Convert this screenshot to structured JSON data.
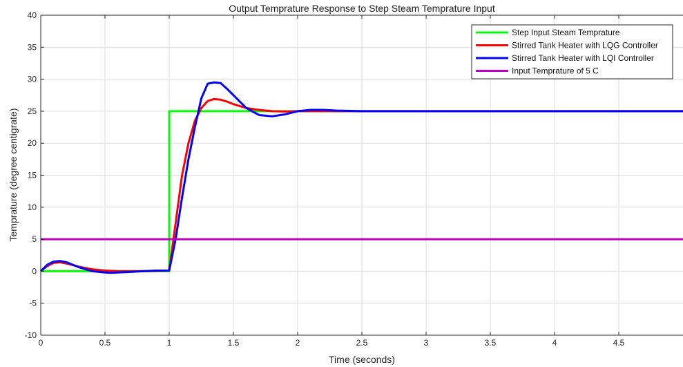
{
  "chart_data": {
    "type": "line",
    "title": "Output Temprature Response to Step Steam Temprature Input",
    "xlabel": "Time (seconds)",
    "ylabel": "Temprature (degree centigrate)",
    "xlim": [
      0,
      5
    ],
    "ylim": [
      -10,
      40
    ],
    "xticks": [
      0,
      0.5,
      1,
      1.5,
      2,
      2.5,
      3,
      3.5,
      4,
      4.5
    ],
    "xtick_labels": [
      "0",
      "0.5",
      "1",
      "1.5",
      "2",
      "2.5",
      "3",
      "3.5",
      "4",
      "4.5"
    ],
    "yticks": [
      -10,
      -5,
      0,
      5,
      10,
      15,
      20,
      25,
      30,
      35,
      40
    ],
    "ytick_labels": [
      "-10",
      "-5",
      "0",
      "5",
      "10",
      "15",
      "20",
      "25",
      "30",
      "35",
      "40"
    ],
    "grid": true,
    "legend_position": "top-right",
    "series": [
      {
        "name": "Step Input Steam Temprature",
        "color": "#00ff00",
        "x": [
          0,
          1,
          1,
          5
        ],
        "y": [
          0,
          0,
          25,
          25
        ]
      },
      {
        "name": "Stirred Tank Heater with LQG Controller",
        "color": "#ff0000",
        "x": [
          0,
          0.05,
          0.1,
          0.15,
          0.2,
          0.3,
          0.4,
          0.5,
          0.6,
          0.7,
          0.8,
          0.9,
          1.0,
          1.05,
          1.1,
          1.15,
          1.2,
          1.25,
          1.3,
          1.35,
          1.4,
          1.45,
          1.5,
          1.6,
          1.7,
          1.8,
          1.9,
          2.0,
          2.2,
          2.5,
          3,
          4,
          5
        ],
        "y": [
          0,
          0.8,
          1.3,
          1.4,
          1.2,
          0.7,
          0.3,
          0.1,
          0.0,
          0.0,
          0.0,
          0.05,
          0.1,
          7.5,
          15.0,
          20.0,
          23.5,
          25.5,
          26.6,
          26.9,
          26.8,
          26.5,
          26.1,
          25.5,
          25.2,
          25.0,
          24.95,
          25.0,
          25.0,
          25.0,
          25.0,
          25.0,
          25.0
        ]
      },
      {
        "name": "Stirred Tank Heater with LQI Controller",
        "color": "#0000ff",
        "x": [
          0,
          0.05,
          0.1,
          0.15,
          0.2,
          0.3,
          0.4,
          0.5,
          0.55,
          0.6,
          0.7,
          0.8,
          0.9,
          1.0,
          1.05,
          1.1,
          1.15,
          1.2,
          1.25,
          1.3,
          1.35,
          1.4,
          1.45,
          1.5,
          1.6,
          1.7,
          1.8,
          1.9,
          2.0,
          2.1,
          2.2,
          2.3,
          2.5,
          3,
          4,
          5
        ],
        "y": [
          0,
          1.0,
          1.5,
          1.6,
          1.4,
          0.6,
          0.0,
          -0.2,
          -0.25,
          -0.2,
          -0.1,
          0.0,
          0.1,
          0.1,
          5.0,
          11.5,
          17.5,
          22.5,
          27.0,
          29.3,
          29.5,
          29.4,
          28.5,
          27.5,
          25.5,
          24.4,
          24.2,
          24.5,
          25.0,
          25.2,
          25.2,
          25.1,
          25.0,
          25.0,
          25.0,
          25.0
        ]
      },
      {
        "name": "Input Temprature of 5 C",
        "color": "#bf00bf",
        "x": [
          0,
          5
        ],
        "y": [
          5,
          5
        ]
      }
    ]
  }
}
